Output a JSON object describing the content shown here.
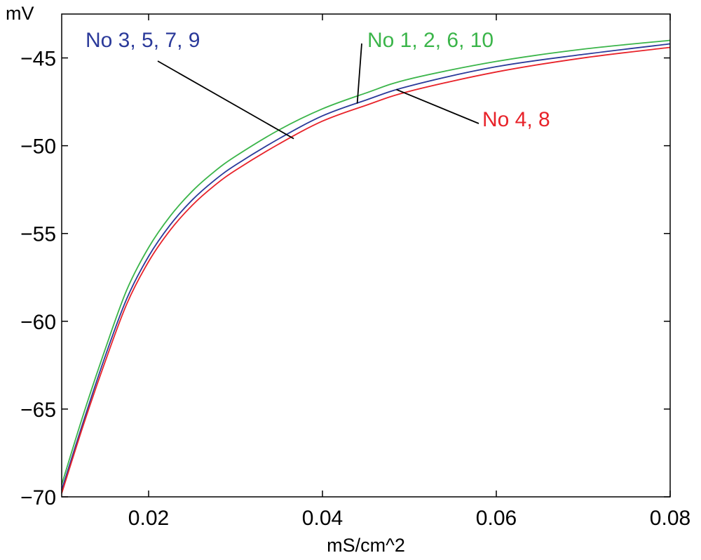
{
  "chart_data": {
    "type": "line",
    "title": "",
    "xlabel": "mS/cm^2",
    "ylabel": "mV",
    "xlim": [
      0.01,
      0.08
    ],
    "ylim": [
      -70,
      -42.5
    ],
    "xticks": [
      0.02,
      0.04,
      0.06,
      0.08
    ],
    "xtick_labels": [
      "0.02",
      "0.04",
      "0.06",
      "0.08"
    ],
    "yticks": [
      -70,
      -65,
      -60,
      -55,
      -50,
      -45
    ],
    "ytick_labels": [
      "−70",
      "−65",
      "−60",
      "−55",
      "−50",
      "−45"
    ],
    "grid": false,
    "legend": "none",
    "x": [
      0.01,
      0.0125,
      0.015,
      0.0175,
      0.02,
      0.0225,
      0.025,
      0.0275,
      0.03,
      0.035,
      0.04,
      0.045,
      0.05,
      0.06,
      0.07,
      0.08
    ],
    "series": [
      {
        "color": "#3bb54a",
        "values": [
          -69.3,
          -65.3,
          -61.6,
          -58.2,
          -55.8,
          -54.0,
          -52.6,
          -51.5,
          -50.6,
          -49.1,
          -47.9,
          -47.0,
          -46.2,
          -45.2,
          -44.5,
          -44.0
        ]
      },
      {
        "color": "#2b3a9a",
        "values": [
          -69.6,
          -65.7,
          -62.0,
          -58.7,
          -56.3,
          -54.5,
          -53.1,
          -52.0,
          -51.1,
          -49.6,
          -48.3,
          -47.4,
          -46.6,
          -45.5,
          -44.8,
          -44.2
        ]
      },
      {
        "color": "#e8232a",
        "values": [
          -69.8,
          -65.9,
          -62.3,
          -59.0,
          -56.6,
          -54.8,
          -53.4,
          -52.3,
          -51.4,
          -49.9,
          -48.6,
          -47.7,
          -46.9,
          -45.8,
          -45.0,
          -44.4
        ]
      }
    ],
    "annotations": [
      {
        "text": "No 3, 5, 7, 9",
        "color": "#2b3a9a",
        "target": {
          "x": 0.0367,
          "y": -49.6
        }
      },
      {
        "text": "No 1, 2, 6, 10",
        "color": "#3bb54a",
        "target": {
          "x": 0.044,
          "y": -47.6
        }
      },
      {
        "text": "No 4, 8",
        "color": "#e8232a",
        "target": {
          "x": 0.0485,
          "y": -46.8
        }
      }
    ]
  }
}
